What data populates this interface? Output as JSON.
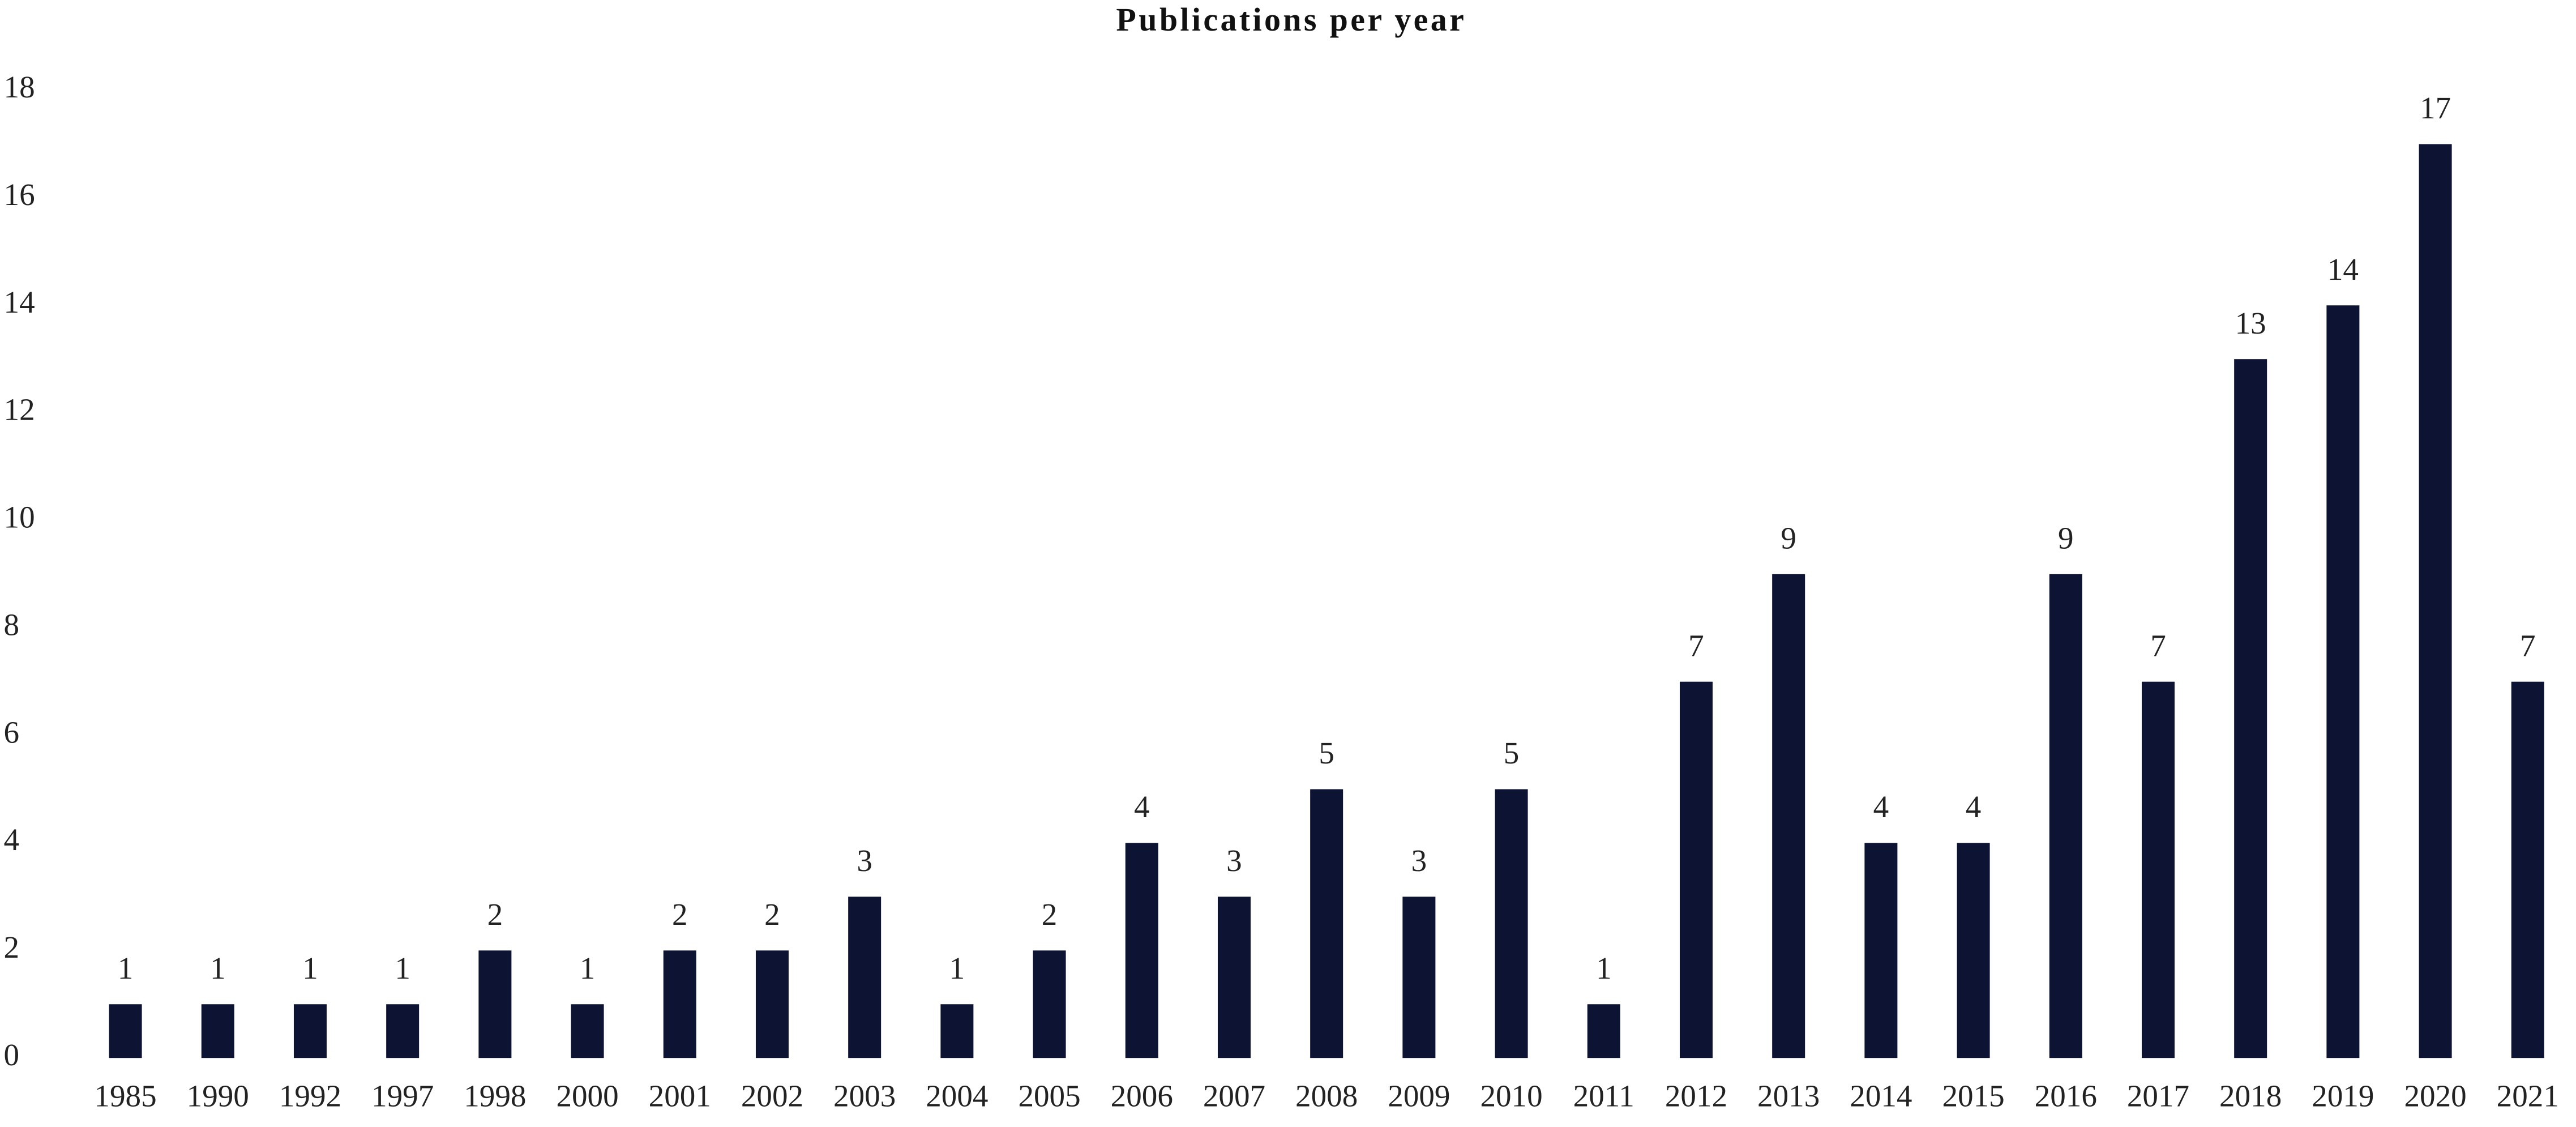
{
  "chart_data": {
    "type": "bar",
    "title": "Publications per year",
    "categories": [
      "1985",
      "1990",
      "1992",
      "1997",
      "1998",
      "2000",
      "2001",
      "2002",
      "2003",
      "2004",
      "2005",
      "2006",
      "2007",
      "2008",
      "2009",
      "2010",
      "2011",
      "2012",
      "2013",
      "2014",
      "2015",
      "2016",
      "2017",
      "2018",
      "2019",
      "2020",
      "2021"
    ],
    "values": [
      1,
      1,
      1,
      1,
      2,
      1,
      2,
      2,
      3,
      1,
      2,
      4,
      3,
      5,
      3,
      5,
      1,
      7,
      9,
      4,
      4,
      9,
      7,
      13,
      14,
      17,
      7
    ],
    "color": "#0d1433",
    "ylim": [
      0,
      18
    ],
    "yticks": [
      0,
      2,
      4,
      6,
      8,
      10,
      12,
      14,
      16,
      18
    ],
    "grid": false
  }
}
